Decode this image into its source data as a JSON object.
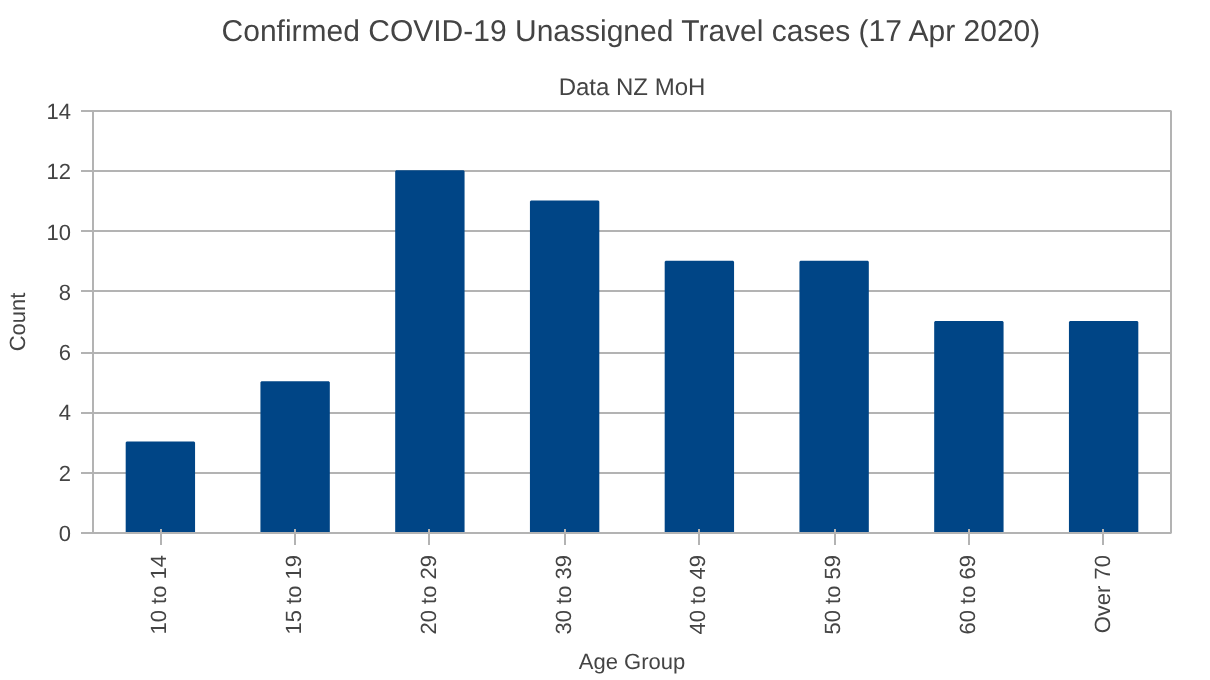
{
  "chart_data": {
    "type": "bar",
    "title": "Confirmed COVID-19 Unassigned Travel cases (17 Apr 2020)",
    "subtitle": "Data NZ MoH",
    "xlabel": "Age Group",
    "ylabel": "Count",
    "categories": [
      "10 to 14",
      "15 to 19",
      "20 to 29",
      "30 to 39",
      "40 to 49",
      "50 to 59",
      "60 to 69",
      "Over 70"
    ],
    "values": [
      3,
      5,
      12,
      11,
      9,
      9,
      7,
      7
    ],
    "color": "#004586",
    "ylim": [
      0,
      14
    ],
    "yticks": [
      0,
      2,
      4,
      6,
      8,
      10,
      12,
      14
    ],
    "grid": "y"
  }
}
